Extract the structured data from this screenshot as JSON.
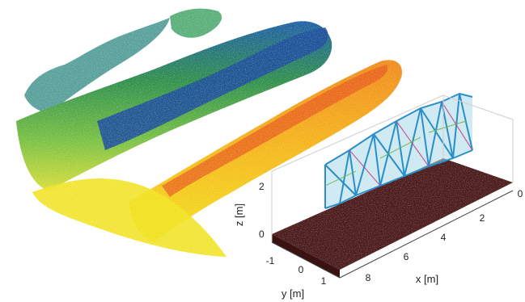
{
  "figure": {
    "axes": {
      "x": {
        "label": "x [m]",
        "ticks": [
          "0",
          "2",
          "4",
          "6",
          "8"
        ]
      },
      "y": {
        "label": "y [m]",
        "ticks": [
          "-1",
          "0",
          "1"
        ]
      },
      "z": {
        "label": "z [m]",
        "ticks": [
          "0",
          "2"
        ]
      }
    },
    "colors": {
      "point_cloud_gradient": [
        "#1b4f9c",
        "#2f8a4a",
        "#5cb84a",
        "#c8d63a",
        "#f2d200",
        "#f28c1e",
        "#e2461a"
      ],
      "ground_points": "#4a1a1a",
      "structure_edges": "#2a8fc8",
      "structure_fill": "#a9d8ea"
    }
  }
}
